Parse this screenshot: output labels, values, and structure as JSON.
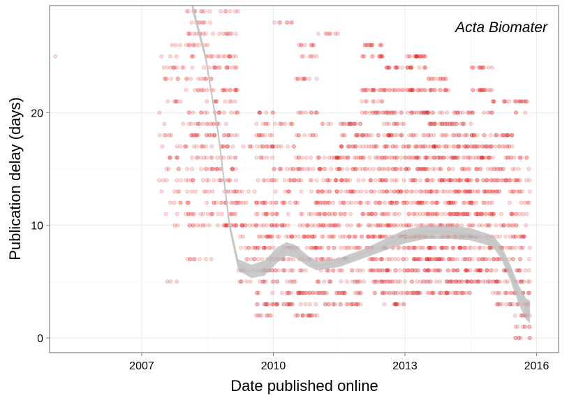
{
  "chart_data": {
    "type": "scatter",
    "annotation": "Acta Biomater",
    "xlabel": "Date published online",
    "ylabel": "Publication delay (days)",
    "xlim": [
      2004.9,
      2016.5
    ],
    "ylim": [
      -1.3,
      29.5
    ],
    "x_ticks": [
      {
        "value": 2007,
        "label": "2007"
      },
      {
        "value": 2010,
        "label": "2010"
      },
      {
        "value": 2013,
        "label": "2013"
      },
      {
        "value": 2016,
        "label": "2016"
      }
    ],
    "y_ticks": [
      {
        "value": 0,
        "label": "0"
      },
      {
        "value": 10,
        "label": "10"
      },
      {
        "value": 20,
        "label": "20"
      }
    ],
    "grid": true,
    "legend": "none",
    "colors": {
      "points": "#e00000",
      "smooth_band": "#b8b8b8",
      "smooth_line": "#c4c4c4",
      "grid": "#ebebeb",
      "panel_border": "#7f7f7f"
    },
    "point_opacity": 0.15,
    "smooth_curve": [
      [
        2008.15,
        29.5
      ],
      [
        2008.45,
        25
      ],
      [
        2008.75,
        18
      ],
      [
        2009.0,
        10
      ],
      [
        2009.2,
        6.5
      ],
      [
        2009.5,
        5.9
      ],
      [
        2009.8,
        6.2
      ],
      [
        2010.1,
        7.4
      ],
      [
        2010.3,
        7.9
      ],
      [
        2010.5,
        7.7
      ],
      [
        2010.8,
        6.8
      ],
      [
        2011.0,
        6.4
      ],
      [
        2011.5,
        6.7
      ],
      [
        2012.0,
        7.4
      ],
      [
        2012.5,
        8.2
      ],
      [
        2013.0,
        9.0
      ],
      [
        2013.5,
        9.4
      ],
      [
        2014.0,
        9.4
      ],
      [
        2014.5,
        9.2
      ],
      [
        2015.0,
        8.6
      ],
      [
        2015.2,
        7.6
      ],
      [
        2015.4,
        5.8
      ],
      [
        2015.6,
        3.8
      ],
      [
        2015.75,
        2.6
      ],
      [
        2015.85,
        2.3
      ]
    ],
    "smooth_band_halfwidth": [
      [
        2008.15,
        0.4
      ],
      [
        2008.8,
        0.3
      ],
      [
        2009.2,
        0.5
      ],
      [
        2009.5,
        0.6
      ],
      [
        2010.0,
        0.7
      ],
      [
        2011.0,
        0.4
      ],
      [
        2012.0,
        0.4
      ],
      [
        2013.0,
        0.6
      ],
      [
        2014.0,
        0.6
      ],
      [
        2015.0,
        0.5
      ],
      [
        2015.4,
        0.7
      ],
      [
        2015.85,
        1.0
      ]
    ],
    "point_groups": [
      {
        "x_range": [
          2005.0,
          2005.05
        ],
        "y_values": [
          25
        ],
        "count": 1
      },
      {
        "x_range": [
          2007.4,
          2008.0
        ],
        "y_values": [
          5,
          10,
          11,
          12,
          13,
          14,
          15,
          16,
          17,
          18,
          19,
          20,
          21,
          22,
          23,
          24,
          25,
          26
        ],
        "count": 70
      },
      {
        "x_range": [
          2008.0,
          2008.6
        ],
        "y_values": [
          7,
          10,
          11,
          12,
          13,
          14,
          15,
          16,
          17,
          18,
          19,
          20,
          21,
          22,
          23,
          24,
          25,
          26,
          27,
          28,
          29
        ],
        "count": 160
      },
      {
        "x_range": [
          2008.6,
          2009.2
        ],
        "y_values": [
          10,
          11,
          12,
          13,
          14,
          15,
          16,
          17,
          18,
          19,
          20,
          21,
          22,
          24,
          25,
          27,
          29
        ],
        "count": 170
      },
      {
        "x_range": [
          2009.2,
          2009.6
        ],
        "y_values": [
          5,
          6,
          7,
          8,
          9,
          10,
          12,
          13,
          17
        ],
        "count": 45
      },
      {
        "x_range": [
          2009.6,
          2010.0
        ],
        "y_values": [
          2,
          3,
          4,
          5,
          6,
          7,
          8,
          9,
          10,
          11,
          12,
          14,
          16,
          17,
          18,
          19,
          20
        ],
        "count": 140
      },
      {
        "x_range": [
          2010.0,
          2010.5
        ],
        "y_values": [
          3,
          4,
          5,
          6,
          7,
          8,
          9,
          10,
          11,
          12,
          13,
          14,
          15,
          17,
          19,
          28
        ],
        "count": 130
      },
      {
        "x_range": [
          2010.5,
          2011.0
        ],
        "y_values": [
          2,
          3,
          4,
          5,
          6,
          7,
          8,
          9,
          10,
          11,
          12,
          13,
          14,
          15,
          16,
          18,
          20,
          23,
          25,
          26
        ],
        "count": 150
      },
      {
        "x_range": [
          2011.0,
          2011.5
        ],
        "y_values": [
          3,
          4,
          5,
          6,
          7,
          8,
          9,
          10,
          11,
          12,
          13,
          14,
          15,
          16,
          19,
          27
        ],
        "count": 150
      },
      {
        "x_range": [
          2011.5,
          2012.0
        ],
        "y_values": [
          3,
          4,
          5,
          6,
          7,
          8,
          9,
          10,
          11,
          12,
          13,
          14,
          15,
          16,
          17,
          18,
          19
        ],
        "count": 160
      },
      {
        "x_range": [
          2012.0,
          2012.5
        ],
        "y_values": [
          4,
          5,
          6,
          7,
          8,
          9,
          10,
          11,
          12,
          13,
          14,
          15,
          16,
          17,
          18,
          20,
          21,
          22,
          25,
          26
        ],
        "count": 200
      },
      {
        "x_range": [
          2012.5,
          2013.0
        ],
        "y_values": [
          3,
          4,
          5,
          6,
          7,
          8,
          9,
          10,
          11,
          12,
          13,
          14,
          15,
          16,
          17,
          18,
          19,
          20,
          22,
          24
        ],
        "count": 220
      },
      {
        "x_range": [
          2013.0,
          2013.5
        ],
        "y_values": [
          4,
          5,
          6,
          7,
          8,
          9,
          10,
          11,
          12,
          13,
          14,
          15,
          16,
          17,
          18,
          20,
          22,
          24,
          25
        ],
        "count": 240
      },
      {
        "x_range": [
          2013.5,
          2014.0
        ],
        "y_values": [
          4,
          5,
          6,
          7,
          8,
          9,
          10,
          11,
          12,
          13,
          14,
          15,
          16,
          17,
          18,
          19,
          20,
          22,
          23
        ],
        "count": 240
      },
      {
        "x_range": [
          2014.0,
          2014.5
        ],
        "y_values": [
          4,
          5,
          6,
          7,
          8,
          9,
          10,
          11,
          12,
          13,
          14,
          15,
          16,
          17,
          18,
          19,
          20
        ],
        "count": 230
      },
      {
        "x_range": [
          2014.5,
          2015.0
        ],
        "y_values": [
          5,
          6,
          7,
          8,
          9,
          10,
          11,
          12,
          13,
          14,
          15,
          16,
          17,
          18,
          20,
          22,
          24
        ],
        "count": 200
      },
      {
        "x_range": [
          2015.0,
          2015.5
        ],
        "y_values": [
          3,
          4,
          5,
          6,
          7,
          8,
          9,
          10,
          11,
          12,
          13,
          14,
          15,
          16,
          17,
          18,
          21
        ],
        "count": 160
      },
      {
        "x_range": [
          2015.5,
          2015.85
        ],
        "y_values": [
          0,
          1,
          2,
          3,
          4,
          5,
          6,
          7,
          8,
          9,
          10,
          11,
          12,
          13,
          14,
          15,
          16,
          20,
          21
        ],
        "count": 120
      }
    ]
  }
}
